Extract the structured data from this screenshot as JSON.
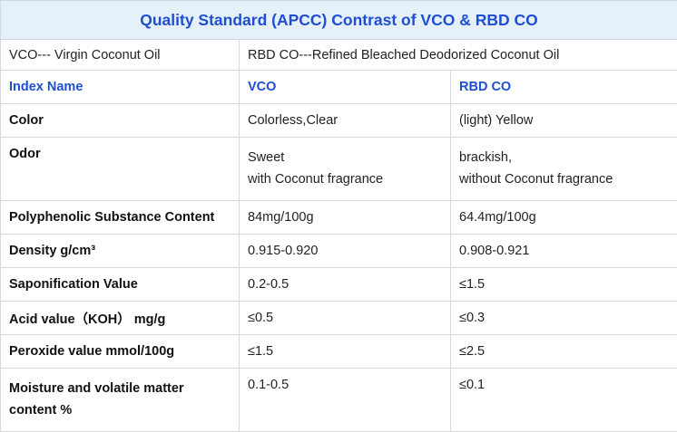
{
  "title": "Quality Standard (APCC) Contrast of VCO & RBD CO",
  "definitions": {
    "vco": "VCO--- Virgin Coconut Oil",
    "rbd": "RBD CO---Refined Bleached Deodorized Coconut Oil"
  },
  "headers": {
    "index": "Index Name",
    "vco": "VCO",
    "rbd": "RBD CO"
  },
  "rows": [
    {
      "name": "Color",
      "vco": "Colorless,Clear",
      "rbd": "(light) Yellow"
    },
    {
      "name": "Odor",
      "vco_l1": "Sweet",
      "vco_l2": "with Coconut fragrance",
      "rbd_l1": "brackish,",
      "rbd_l2": "without Coconut fragrance"
    },
    {
      "name": "Polyphenolic Substance Content",
      "vco": "84mg/100g",
      "rbd": "64.4mg/100g"
    },
    {
      "name": "Density  g/cm³",
      "vco": "0.915-0.920",
      "rbd": "0.908-0.921"
    },
    {
      "name": "Saponification Value",
      "vco": "0.2-0.5",
      "rbd": "≤1.5"
    },
    {
      "name": "Acid value（KOH） mg/g",
      "vco": "≤0.5",
      "rbd": "≤0.3"
    },
    {
      "name": "Peroxide value mmol/100g",
      "vco": "≤1.5",
      "rbd": "≤2.5"
    },
    {
      "name_l1": "Moisture and volatile matter",
      "name_l2": "content %",
      "vco": "0.1-0.5",
      "rbd": "≤0.1"
    }
  ],
  "colors": {
    "accent": "#1f4fd1",
    "title_bg": "#e6f0fa",
    "border": "#d9d9d9"
  }
}
